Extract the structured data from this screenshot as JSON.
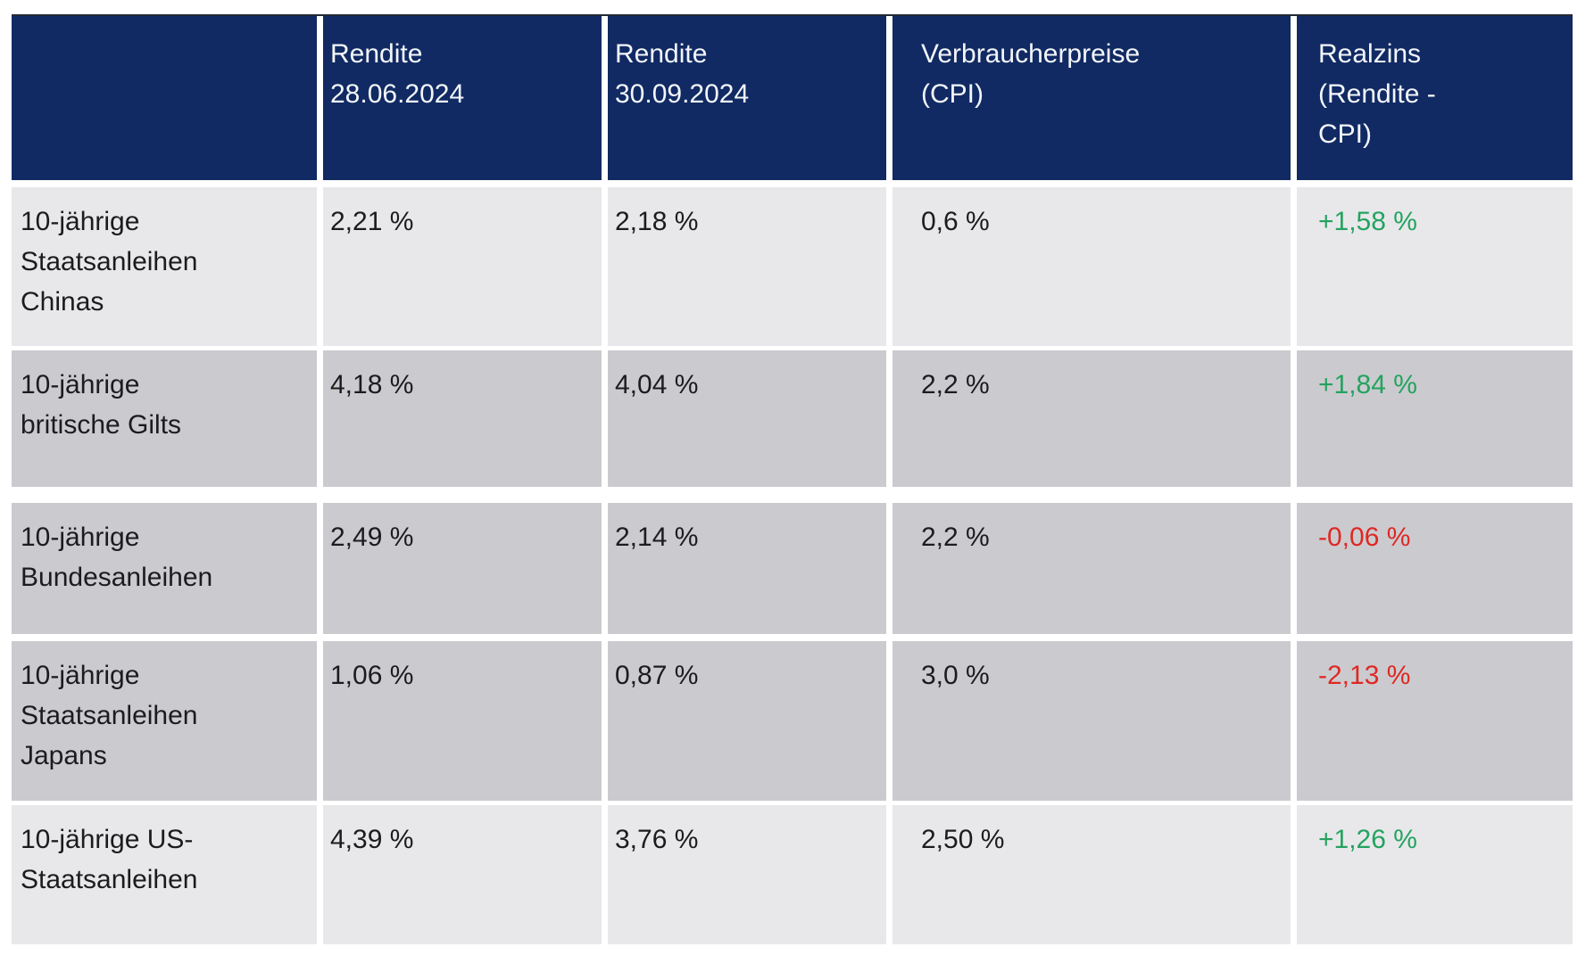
{
  "colors": {
    "header_navy": "#112A63",
    "header_text": "#F3F6FA",
    "row_light": "#E8E8EB",
    "row_dark": "#CBCBCF",
    "body_text": "#1C1C1E",
    "positive_green": "#24A35F",
    "negative_red": "#DF2823",
    "page_bg": "#FFFFFF"
  },
  "table": {
    "header": {
      "asset": "",
      "rendite_jun": "Rendite\n28.06.2024",
      "rendite_sep": "Rendite\n30.09.2024",
      "cpi": "Verbraucherpreise\n(CPI)",
      "realzins": "Realzins\n(Rendite -\nCPI)"
    },
    "rows": [
      {
        "label": "10-jährige\nStaatsanleihen\nChinas",
        "rendite_jun": "2,21 %",
        "rendite_sep": "2,18 %",
        "cpi": "0,6 %",
        "realzins": "+1,58 %",
        "trend": "positive",
        "shade": "light"
      },
      {
        "label": "10-jährige\nbritische Gilts",
        "rendite_jun": "4,18 %",
        "rendite_sep": "4,04 %",
        "cpi": "2,2 %",
        "realzins": "+1,84 %",
        "trend": "positive",
        "shade": "dark"
      },
      {
        "label": "10-jährige\nBundesanleihen",
        "rendite_jun": "2,49 %",
        "rendite_sep": "2,14 %",
        "cpi": "2,2 %",
        "realzins": "-0,06 %",
        "trend": "negative",
        "shade": "dark"
      },
      {
        "label": "10-jährige\nStaatsanleihen\nJapans",
        "rendite_jun": "1,06 %",
        "rendite_sep": "0,87 %",
        "cpi": "3,0 %",
        "realzins": "-2,13 %",
        "trend": "negative",
        "shade": "dark"
      },
      {
        "label": "10-jährige US-\nStaatsanleihen",
        "rendite_jun": "4,39 %",
        "rendite_sep": "3,76 %",
        "cpi": "2,50 %",
        "realzins": "+1,26 %",
        "trend": "positive",
        "shade": "light"
      }
    ]
  },
  "chart_data": {
    "type": "table",
    "columns": [
      "",
      "Rendite 28.06.2024",
      "Rendite 30.09.2024",
      "Verbraucherpreise (CPI)",
      "Realzins (Rendite - CPI)"
    ],
    "rows": [
      [
        "10-jährige Staatsanleihen Chinas",
        "2,21 %",
        "2,18 %",
        "0,6 %",
        "+1,58 %"
      ],
      [
        "10-jährige britische Gilts",
        "4,18 %",
        "4,04 %",
        "2,2 %",
        "+1,84 %"
      ],
      [
        "10-jährige Bundesanleihen",
        "2,49 %",
        "2,14 %",
        "2,2 %",
        "-0,06 %"
      ],
      [
        "10-jährige Staatsanleihen Japans",
        "1,06 %",
        "0,87 %",
        "3,0 %",
        "-2,13 %"
      ],
      [
        "10-jährige US-Staatsanleihen",
        "4,39 %",
        "3,76 %",
        "2,50 %",
        "+1,26 %"
      ]
    ],
    "notes": "Realzins values colored green when positive, red when negative"
  }
}
